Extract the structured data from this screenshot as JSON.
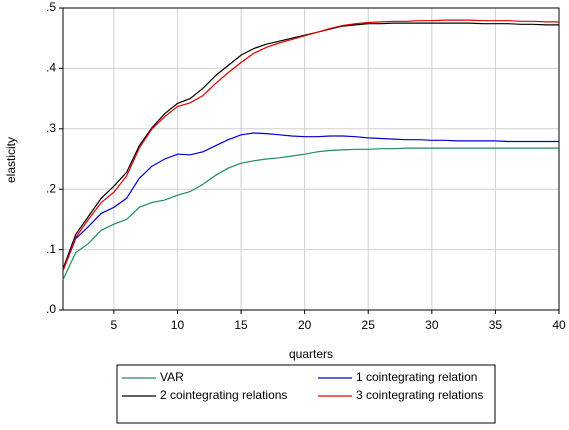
{
  "chart_data": {
    "type": "line",
    "y_label": "elasticity",
    "x_label": "quarters",
    "x": [
      1,
      2,
      3,
      4,
      5,
      6,
      7,
      8,
      9,
      10,
      11,
      12,
      13,
      14,
      15,
      16,
      17,
      18,
      19,
      20,
      21,
      22,
      23,
      24,
      25,
      26,
      27,
      28,
      29,
      30,
      31,
      32,
      33,
      34,
      35,
      36,
      37,
      38,
      39,
      40
    ],
    "xlim": [
      1,
      40
    ],
    "xticks": [
      5,
      10,
      15,
      20,
      25,
      30,
      35,
      40
    ],
    "ylim": [
      0,
      0.5
    ],
    "yticks": [
      {
        "value": 0,
        "label": ".0"
      },
      {
        "value": 0.1,
        "label": ".1"
      },
      {
        "value": 0.2,
        "label": ".2"
      },
      {
        "value": 0.3,
        "label": ".3"
      },
      {
        "value": 0.4,
        "label": ".4"
      },
      {
        "value": 0.5,
        "label": ".5"
      }
    ],
    "grid": true,
    "series": [
      {
        "name": "VAR",
        "color": "#1e8c5c",
        "values": [
          0.05,
          0.095,
          0.11,
          0.132,
          0.142,
          0.15,
          0.17,
          0.178,
          0.182,
          0.19,
          0.196,
          0.208,
          0.223,
          0.235,
          0.243,
          0.247,
          0.25,
          0.252,
          0.255,
          0.258,
          0.262,
          0.264,
          0.265,
          0.266,
          0.266,
          0.267,
          0.267,
          0.268,
          0.268,
          0.268,
          0.268,
          0.268,
          0.268,
          0.268,
          0.268,
          0.268,
          0.268,
          0.268,
          0.268,
          0.268
        ]
      },
      {
        "name": "1 cointegrating relation",
        "color": "#0000d0",
        "values": [
          0.065,
          0.118,
          0.138,
          0.16,
          0.17,
          0.185,
          0.218,
          0.238,
          0.25,
          0.258,
          0.257,
          0.262,
          0.272,
          0.282,
          0.29,
          0.293,
          0.292,
          0.29,
          0.288,
          0.287,
          0.287,
          0.288,
          0.288,
          0.287,
          0.285,
          0.284,
          0.283,
          0.282,
          0.282,
          0.281,
          0.281,
          0.28,
          0.28,
          0.28,
          0.28,
          0.279,
          0.279,
          0.279,
          0.279,
          0.279
        ]
      },
      {
        "name": "2 cointegrating relations",
        "color": "#000000",
        "values": [
          0.068,
          0.125,
          0.155,
          0.185,
          0.205,
          0.228,
          0.272,
          0.302,
          0.325,
          0.342,
          0.35,
          0.367,
          0.388,
          0.405,
          0.422,
          0.433,
          0.44,
          0.445,
          0.45,
          0.455,
          0.46,
          0.465,
          0.47,
          0.472,
          0.474,
          0.474,
          0.475,
          0.475,
          0.475,
          0.475,
          0.475,
          0.475,
          0.475,
          0.474,
          0.474,
          0.474,
          0.473,
          0.473,
          0.472,
          0.472
        ]
      },
      {
        "name": "3 cointegrating relations",
        "color": "#e00000",
        "values": [
          0.065,
          0.12,
          0.15,
          0.178,
          0.195,
          0.222,
          0.268,
          0.3,
          0.32,
          0.337,
          0.343,
          0.355,
          0.375,
          0.393,
          0.41,
          0.425,
          0.435,
          0.442,
          0.448,
          0.454,
          0.46,
          0.466,
          0.471,
          0.474,
          0.476,
          0.477,
          0.478,
          0.478,
          0.479,
          0.479,
          0.48,
          0.48,
          0.48,
          0.479,
          0.479,
          0.479,
          0.478,
          0.478,
          0.477,
          0.477
        ]
      }
    ]
  }
}
